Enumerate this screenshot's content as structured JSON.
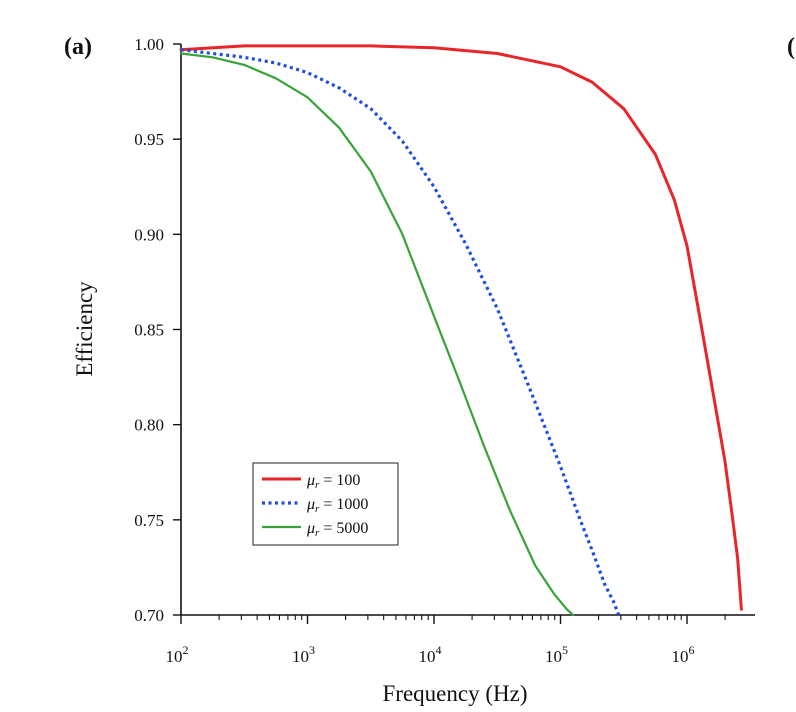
{
  "colors": {
    "background": "#ffffff",
    "axis": "#111111",
    "red": "#e8262a",
    "blue": "#1f4fd8",
    "green": "#38a339"
  },
  "panel": {
    "label": "(a)",
    "next_label_fragment": "("
  },
  "chart_data": {
    "type": "line",
    "title": "",
    "xlabel": "Frequency (Hz)",
    "ylabel": "Efficiency",
    "xscale": "log",
    "xlim_exponents": [
      2,
      6.45
    ],
    "ylim": [
      0.7,
      1.0
    ],
    "grid": false,
    "legend_position": "bottom-left",
    "x_ticks": [
      {
        "base": "10",
        "exp": "2"
      },
      {
        "base": "10",
        "exp": "3"
      },
      {
        "base": "10",
        "exp": "4"
      },
      {
        "base": "10",
        "exp": "5"
      },
      {
        "base": "10",
        "exp": "6"
      }
    ],
    "y_ticks": [
      "1.00",
      "0.95",
      "0.90",
      "0.85",
      "0.80",
      "0.75",
      "0.70"
    ],
    "series": [
      {
        "name": "μr = 100",
        "legend_symbol": "μ",
        "legend_sub": "r",
        "legend_value": "= 100",
        "color": "#e8262a",
        "style": "solid",
        "log10_f": [
          2.0,
          2.5,
          3.0,
          3.5,
          4.0,
          4.5,
          5.0,
          5.25,
          5.5,
          5.75,
          5.9,
          6.0,
          6.1,
          6.2,
          6.3,
          6.35,
          6.4,
          6.43
        ],
        "efficiency": [
          0.997,
          0.999,
          0.999,
          0.999,
          0.998,
          0.995,
          0.988,
          0.98,
          0.966,
          0.942,
          0.918,
          0.894,
          0.857,
          0.819,
          0.781,
          0.756,
          0.73,
          0.703
        ]
      },
      {
        "name": "μr = 1000",
        "legend_symbol": "μ",
        "legend_sub": "r",
        "legend_value": "= 1000",
        "color": "#1f4fd8",
        "style": "dotted",
        "log10_f": [
          2.0,
          2.25,
          2.5,
          2.75,
          3.0,
          3.25,
          3.5,
          3.75,
          4.0,
          4.25,
          4.5,
          4.75,
          5.0,
          5.15,
          5.25,
          5.35,
          5.42,
          5.46
        ],
        "efficiency": [
          0.997,
          0.995,
          0.993,
          0.99,
          0.985,
          0.977,
          0.966,
          0.949,
          0.925,
          0.895,
          0.861,
          0.82,
          0.778,
          0.751,
          0.734,
          0.716,
          0.707,
          0.7
        ]
      },
      {
        "name": "μr = 5000",
        "legend_symbol": "μ",
        "legend_sub": "r",
        "legend_value": "= 5000",
        "color": "#38a339",
        "style": "solid",
        "log10_f": [
          2.0,
          2.25,
          2.5,
          2.75,
          3.0,
          3.25,
          3.5,
          3.75,
          4.0,
          4.2,
          4.4,
          4.6,
          4.8,
          4.95,
          5.05,
          5.1
        ],
        "efficiency": [
          0.995,
          0.993,
          0.989,
          0.982,
          0.972,
          0.956,
          0.933,
          0.9,
          0.857,
          0.823,
          0.788,
          0.755,
          0.726,
          0.711,
          0.703,
          0.7
        ]
      }
    ]
  }
}
